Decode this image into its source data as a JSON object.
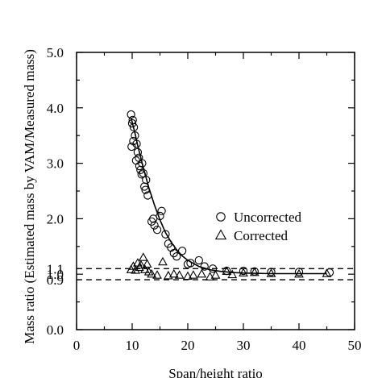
{
  "chart_data": {
    "type": "scatter",
    "xlabel": "Span/height ratio",
    "ylabel": "Mass ratio (Estimated mass by VAM/Measured mass)",
    "xlim": [
      0,
      50
    ],
    "ylim": [
      0,
      5
    ],
    "xticks": [
      "0",
      "10",
      "20",
      "30",
      "40",
      "50"
    ],
    "yticks": [
      "0.0",
      "0.9",
      "1.0",
      "1.1",
      "2.0",
      "3.0",
      "4.0",
      "5.0"
    ],
    "ytick_values": [
      0.0,
      0.9,
      1.0,
      1.1,
      2.0,
      3.0,
      4.0,
      5.0
    ],
    "legend_position": "right, mid-lower",
    "reference_lines": [
      {
        "y": 1.1,
        "style": "dashed"
      },
      {
        "y": 0.9,
        "style": "dashed"
      }
    ],
    "fit_curve": {
      "name": "fit",
      "x": [
        9.8,
        10.5,
        11.0,
        12.0,
        13.0,
        14.0,
        15.0,
        16.0,
        17.0,
        18.0,
        19.0,
        20.0,
        22.0,
        24.0,
        26.0,
        28.0,
        30.0,
        35.0,
        40.0,
        45.0
      ],
      "y": [
        3.82,
        3.55,
        3.32,
        2.92,
        2.56,
        2.25,
        1.98,
        1.75,
        1.58,
        1.44,
        1.33,
        1.25,
        1.14,
        1.08,
        1.05,
        1.03,
        1.02,
        1.01,
        1.01,
        1.01
      ]
    },
    "series": [
      {
        "name": "Uncorrected",
        "marker": "circle",
        "x": [
          9.8,
          10.0,
          10.1,
          10.3,
          9.9,
          10.2,
          10.5,
          10.8,
          10.7,
          11.0,
          11.2,
          11.3,
          11.5,
          11.8,
          11.7,
          12.0,
          12.2,
          12.5,
          12.4,
          12.8,
          13.5,
          13.8,
          14.0,
          14.5,
          15.0,
          15.3,
          16.0,
          16.5,
          17.0,
          17.5,
          18.0,
          19.0,
          20.0,
          20.5,
          22.0,
          23.0,
          24.5,
          27.0,
          30.0,
          32.0,
          35.0,
          40.0,
          45.5
        ],
        "y": [
          3.88,
          3.72,
          3.78,
          3.65,
          3.3,
          3.4,
          3.5,
          3.35,
          3.05,
          3.2,
          3.1,
          2.95,
          2.88,
          3.0,
          2.8,
          2.82,
          2.58,
          2.7,
          2.52,
          2.42,
          1.95,
          2.0,
          1.88,
          1.8,
          2.05,
          2.14,
          1.72,
          1.55,
          1.48,
          1.38,
          1.32,
          1.42,
          1.18,
          1.2,
          1.25,
          1.14,
          1.1,
          1.06,
          1.06,
          1.05,
          1.04,
          1.04,
          1.03
        ]
      },
      {
        "name": "Corrected",
        "marker": "triangle",
        "x": [
          9.8,
          10.2,
          10.6,
          11.0,
          11.3,
          11.6,
          12.0,
          12.3,
          12.7,
          13.0,
          13.5,
          14.5,
          15.5,
          16.5,
          17.5,
          18.5,
          20.0,
          21.0,
          22.5,
          24.0,
          25.0,
          27.0,
          28.0,
          30.0,
          32.0,
          35.0,
          40.0,
          45.0
        ],
        "y": [
          1.08,
          1.14,
          1.07,
          1.2,
          1.12,
          1.16,
          1.3,
          1.08,
          1.18,
          1.04,
          1.0,
          0.98,
          1.22,
          0.97,
          1.0,
          0.98,
          0.96,
          0.98,
          1.0,
          0.95,
          0.98,
          1.05,
          0.99,
          1.02,
          1.03,
          1.01,
          1.0,
          1.01
        ]
      }
    ]
  }
}
